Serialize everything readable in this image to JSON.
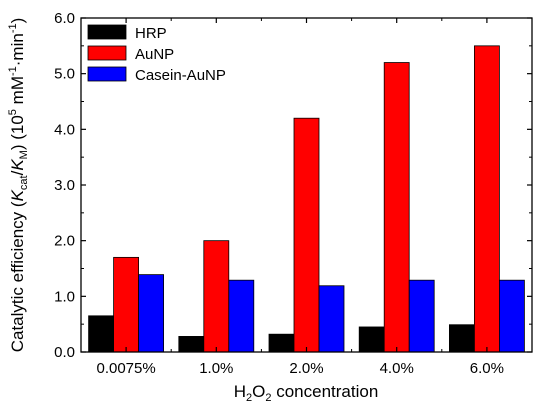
{
  "chart_data": {
    "type": "bar",
    "categories": [
      "0.0075%",
      "1.0%",
      "2.0%",
      "4.0%",
      "6.0%"
    ],
    "series": [
      {
        "name": "HRP",
        "color": "#000000",
        "values": [
          0.65,
          0.28,
          0.32,
          0.45,
          0.49
        ]
      },
      {
        "name": "AuNP",
        "color": "#ff0000",
        "values": [
          1.7,
          2.0,
          4.2,
          5.2,
          5.5
        ]
      },
      {
        "name": "Casein-AuNP",
        "color": "#0000ff",
        "values": [
          1.39,
          1.29,
          1.19,
          1.29,
          1.29
        ]
      }
    ],
    "xlabel": {
      "prefix": "H",
      "sub1": "2",
      "mid": "O",
      "sub2": "2",
      "suffix": " concentration"
    },
    "ylabel": {
      "prefix": "Catalytic efficiency (",
      "k1": "K",
      "k1_sub": "cat",
      "slash": "/",
      "k2": "K",
      "k2_sub": "M",
      "mid": ") (10",
      "exp1": "5",
      "unit": " mM",
      "exp2": "-1",
      "unit2": "·min",
      "exp3": "-1",
      "suffix": ")"
    },
    "ylim": [
      0,
      6
    ],
    "yticks": [
      "0.0",
      "1.0",
      "2.0",
      "3.0",
      "4.0",
      "5.0",
      "6.0"
    ],
    "legend_position": "top-left",
    "grid": false
  }
}
